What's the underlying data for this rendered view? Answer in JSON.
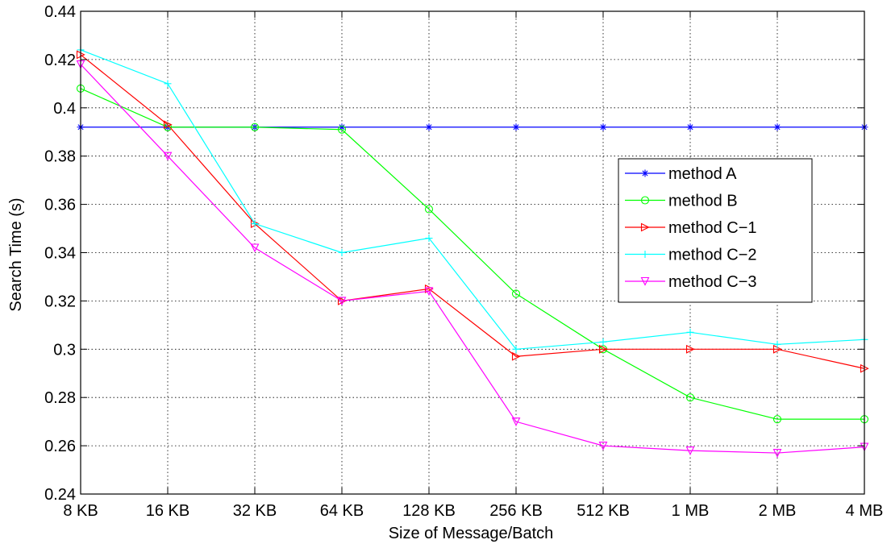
{
  "chart_data": {
    "type": "line",
    "xlabel": "Size of Message/Batch",
    "ylabel": "Search Time (s)",
    "categories": [
      "8 KB",
      "16 KB",
      "32 KB",
      "64 KB",
      "128 KB",
      "256 KB",
      "512 KB",
      "1 MB",
      "2 MB",
      "4 MB"
    ],
    "ylim": [
      0.24,
      0.44
    ],
    "yticks": [
      "0.24",
      "0.26",
      "0.28",
      "0.3",
      "0.32",
      "0.34",
      "0.36",
      "0.38",
      "0.4",
      "0.42",
      "0.44"
    ],
    "grid": true,
    "legend_position": "right",
    "series": [
      {
        "name": "method A",
        "color": "#0000ff",
        "marker": "asterisk",
        "values": [
          0.392,
          0.392,
          0.392,
          0.392,
          0.392,
          0.392,
          0.392,
          0.392,
          0.392,
          0.392
        ]
      },
      {
        "name": "method B",
        "color": "#00ff00",
        "marker": "circle",
        "values": [
          0.408,
          0.392,
          0.392,
          0.391,
          0.358,
          0.323,
          0.3,
          0.28,
          0.271,
          0.271
        ]
      },
      {
        "name": "method C−1",
        "color": "#ff0000",
        "marker": "triangle-right",
        "values": [
          0.422,
          0.393,
          0.352,
          0.32,
          0.325,
          0.297,
          0.3,
          0.3,
          0.3,
          0.292
        ]
      },
      {
        "name": "method C−2",
        "color": "#00ffff",
        "marker": "plus",
        "values": [
          0.424,
          0.41,
          0.352,
          0.34,
          0.346,
          0.3,
          0.303,
          0.307,
          0.302,
          0.304
        ]
      },
      {
        "name": "method C−3",
        "color": "#ff00ff",
        "marker": "triangle-down",
        "values": [
          0.418,
          0.38,
          0.342,
          0.32,
          0.324,
          0.27,
          0.26,
          0.258,
          0.257,
          0.2595
        ]
      }
    ]
  }
}
